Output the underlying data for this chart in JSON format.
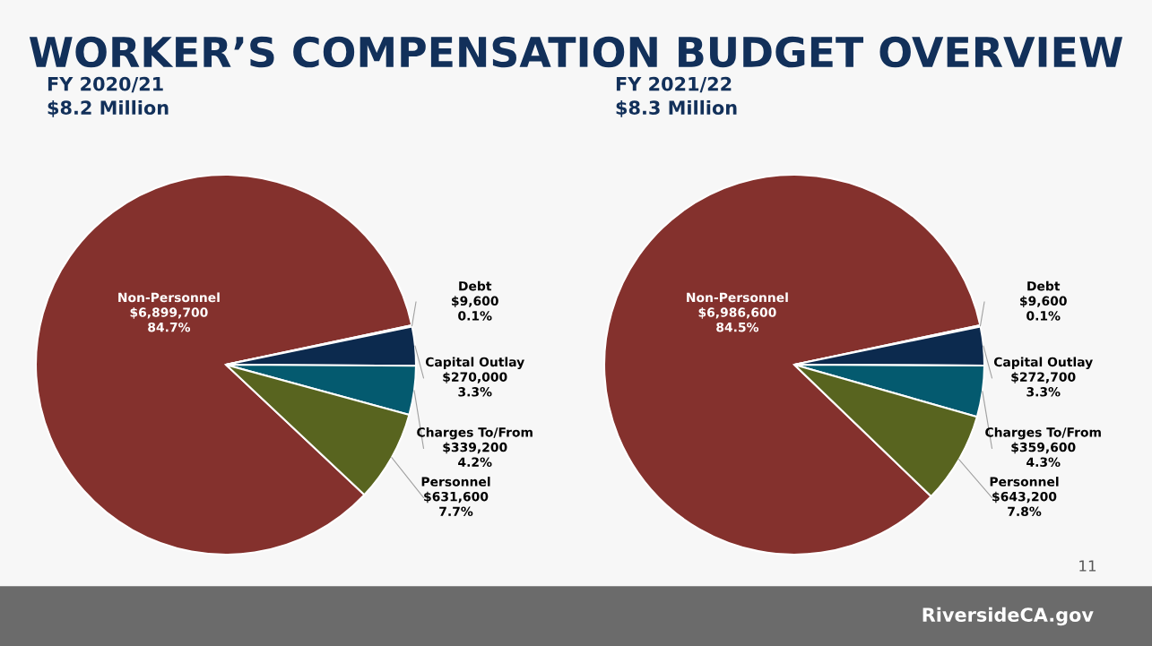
{
  "chart_data": [
    {
      "type": "pie",
      "title": "WORKER’S COMPENSATION BUDGET OVERVIEW",
      "subtitle": "FY 2020/21\n$8.2 Million",
      "categories": [
        "Non-Personnel",
        "Debt",
        "Capital Outlay",
        "Charges To/From",
        "Personnel"
      ],
      "values": [
        6899700,
        9600,
        270000,
        339200,
        631600
      ],
      "colors": [
        "#84312d",
        "#7f7f7f",
        "#0c2a4e",
        "#045a6f",
        "#58641f"
      ],
      "value_labels": [
        "$6,899,700\n84.7%",
        "$9,600\n0.1%",
        "$270,000\n3.3%",
        "$339,200\n4.2%",
        "$631,600\n7.7%"
      ]
    },
    {
      "type": "pie",
      "subtitle": "FY 2021/22\n$8.3 Million",
      "categories": [
        "Non-Personnel",
        "Debt",
        "Capital Outlay",
        "Charges To/From",
        "Personnel"
      ],
      "values": [
        6986600,
        9600,
        272700,
        359600,
        643200
      ],
      "colors": [
        "#84312d",
        "#7f7f7f",
        "#0c2a4e",
        "#045a6f",
        "#58641f"
      ],
      "value_labels": [
        "$6,986,600\n84.5%",
        "$9,600\n0.1%",
        "$272,700\n3.3%",
        "$359,600\n4.3%",
        "$643,200\n7.8%"
      ],
      "annotations": [
        "11",
        "RiversideCA.gov"
      ]
    }
  ]
}
